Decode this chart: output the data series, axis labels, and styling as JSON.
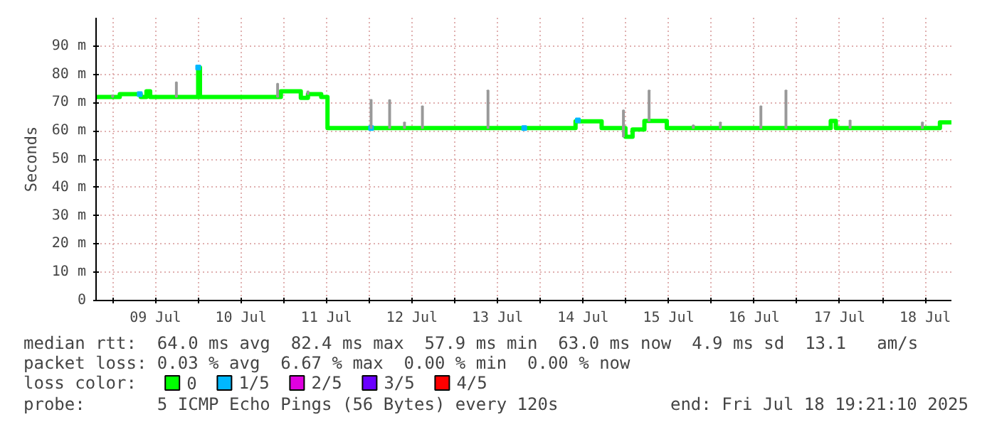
{
  "chart_data": {
    "type": "step",
    "ylabel": "Seconds",
    "legend": "bottom",
    "legend_title": "loss color:",
    "grid": true,
    "xlim": [
      "2025-07-08T19:21",
      "2025-07-18T19:21"
    ],
    "ylim": [
      0,
      100
    ],
    "yticks": [
      0,
      {
        "value": 10,
        "label": "10 m"
      },
      {
        "value": 20,
        "label": "20 m"
      },
      {
        "value": 30,
        "label": "30 m"
      },
      {
        "value": 40,
        "label": "40 m"
      },
      {
        "value": 50,
        "label": "50 m"
      },
      {
        "value": 60,
        "label": "60 m"
      },
      {
        "value": 70,
        "label": "70 m"
      },
      {
        "value": 80,
        "label": "80 m"
      },
      {
        "value": 90,
        "label": "90 m"
      }
    ],
    "xticks": [
      {
        "value": "2025-07-09T00:00",
        "label": null
      },
      {
        "value": "2025-07-09T12:00",
        "label": "09 Jul"
      },
      {
        "value": "2025-07-10T00:00",
        "label": null
      },
      {
        "value": "2025-07-10T12:00",
        "label": "10 Jul"
      },
      {
        "value": "2025-07-11T00:00",
        "label": null
      },
      {
        "value": "2025-07-11T12:00",
        "label": "11 Jul"
      },
      {
        "value": "2025-07-12T00:00",
        "label": null
      },
      {
        "value": "2025-07-12T12:00",
        "label": "12 Jul"
      },
      {
        "value": "2025-07-13T00:00",
        "label": null
      },
      {
        "value": "2025-07-13T12:00",
        "label": "13 Jul"
      },
      {
        "value": "2025-07-14T00:00",
        "label": null
      },
      {
        "value": "2025-07-14T12:00",
        "label": "14 Jul"
      },
      {
        "value": "2025-07-15T00:00",
        "label": null
      },
      {
        "value": "2025-07-15T12:00",
        "label": "15 Jul"
      },
      {
        "value": "2025-07-16T00:00",
        "label": null
      },
      {
        "value": "2025-07-16T12:00",
        "label": "16 Jul"
      },
      {
        "value": "2025-07-17T00:00",
        "label": null
      },
      {
        "value": "2025-07-17T12:00",
        "label": "17 Jul"
      },
      {
        "value": "2025-07-18T00:00",
        "label": null
      },
      {
        "value": "2025-07-18T12:00",
        "label": "18 Jul"
      }
    ],
    "series": [
      {
        "type": "bar",
        "color": "#999999",
        "x": [
          "2025-07-09T00:00",
          "2025-07-09T17:53",
          "2025-07-10T22:17",
          "2025-07-11T06:48",
          "2025-07-12T00:31",
          "2025-07-12T05:43",
          "2025-07-12T09:53",
          "2025-07-12T14:55",
          "2025-07-13T09:19",
          "2025-07-14T23:19",
          "2025-07-15T06:31",
          "2025-07-15T18:55",
          "2025-07-16T02:31",
          "2025-07-16T13:53",
          "2025-07-16T20:55",
          "2025-07-17T14:55",
          "2025-07-18T11:12"
        ],
        "base": [
          72,
          72,
          72,
          73,
          61,
          61,
          61,
          61,
          61,
          57.9,
          63.5,
          61,
          61,
          61,
          61,
          61,
          61
        ],
        "values": [
          0.6,
          5.2,
          4.7,
          1,
          10,
          9.9,
          2,
          7.7,
          13.3,
          9.4,
          10.8,
          1,
          2,
          7.7,
          13.3,
          2.7,
          2
        ]
      },
      {
        "name": "0",
        "color": "#00ff00",
        "x": [
          "2025-07-08T19:21",
          "2025-07-09T02:00",
          "2025-07-09T07:53",
          "2025-07-09T09:29",
          "2025-07-09T10:32",
          "2025-07-10T00:00",
          "2025-07-10T00:30",
          "2025-07-10T23:12",
          "2025-07-11T04:48",
          "2025-07-11T06:48",
          "2025-07-11T10:31",
          "2025-07-11T12:17",
          "2025-07-14T09:53",
          "2025-07-14T17:12",
          "2025-07-14T23:53",
          "2025-07-15T01:53",
          "2025-07-15T05:12",
          "2025-07-15T11:29",
          "2025-07-17T09:29",
          "2025-07-17T10:55",
          "2025-07-18T16:07",
          "2025-07-18T19:21"
        ],
        "values": [
          72,
          73,
          72,
          74,
          72,
          82.4,
          72,
          74,
          71.7,
          73,
          72,
          61,
          63.4,
          61,
          57.9,
          60.5,
          63.5,
          61,
          63.5,
          61,
          63,
          63
        ]
      },
      {
        "name": "1/5",
        "type": "scatter",
        "marker": "square",
        "color": "#00b8ff",
        "x": [
          "2025-07-09T07:36",
          "2025-07-10T00:00",
          "2025-07-12T00:31",
          "2025-07-13T19:29",
          "2025-07-14T10:32"
        ],
        "values": [
          73,
          82.4,
          61,
          61,
          63.7
        ]
      },
      {
        "name": "2/5",
        "type": "scatter",
        "color": "#e000e0"
      },
      {
        "name": "3/5",
        "type": "scatter",
        "color": "#6a00ff"
      },
      {
        "name": "4/5",
        "type": "scatter",
        "color": "#ff0000"
      }
    ],
    "annotations": [
      "median rtt:  64.0 ms avg  82.4 ms max  57.9 ms min  63.0 ms now  4.9 ms sd  13.1   am/s",
      "packet loss: 0.03 % avg  6.67 % max  0.00 % min  0.00 % now",
      "probe:       5 ICMP Echo Pings (56 Bytes) every 120s",
      "end: Fri Jul 18 19:21:10 2025"
    ]
  }
}
